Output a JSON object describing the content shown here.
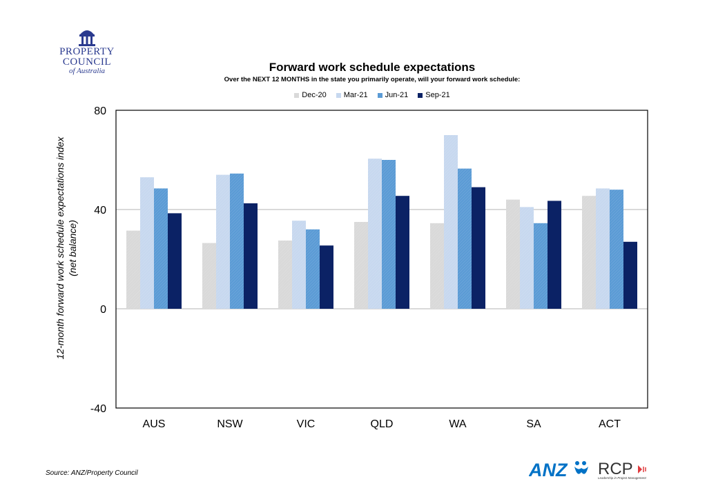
{
  "logo": {
    "line1": "PROPERTY",
    "line2": "COUNCIL",
    "line3": "of Australia"
  },
  "source": "Source: ANZ/Property Council",
  "partners": {
    "anz": "ANZ",
    "rcp": "RCP",
    "rcp_tagline": "Leadership in Project Management"
  },
  "colors": {
    "Dec-20": "#d9d9d9",
    "Mar-21": "#c7d8ef",
    "Jun-21": "#5b9bd5",
    "Sep-21": "#0b2265"
  },
  "chart_data": {
    "type": "bar",
    "title": "Forward work schedule expectations",
    "subtitle": "Over the NEXT 12 MONTHS in the state you primarily operate, will your forward work schedule:",
    "ylabel_line1": "12-month forward work schedule expectations index",
    "ylabel_line2": "(net balance)",
    "xlabel": "",
    "ylim": [
      -40,
      80
    ],
    "yticks": [
      80,
      40,
      0,
      -40
    ],
    "gridlines": [
      40,
      0
    ],
    "legend_position": "top",
    "categories": [
      "AUS",
      "NSW",
      "VIC",
      "QLD",
      "WA",
      "SA",
      "ACT"
    ],
    "series": [
      {
        "name": "Dec-20",
        "values": [
          31.5,
          26.5,
          27.5,
          35,
          34.5,
          44,
          45.5
        ]
      },
      {
        "name": "Mar-21",
        "values": [
          53,
          54,
          35.5,
          60.5,
          70,
          41,
          48.5
        ]
      },
      {
        "name": "Jun-21",
        "values": [
          48.5,
          54.5,
          32,
          60,
          56.5,
          34.5,
          48
        ]
      },
      {
        "name": "Sep-21",
        "values": [
          38.5,
          42.5,
          25.5,
          45.5,
          49,
          43.5,
          27
        ]
      }
    ]
  }
}
